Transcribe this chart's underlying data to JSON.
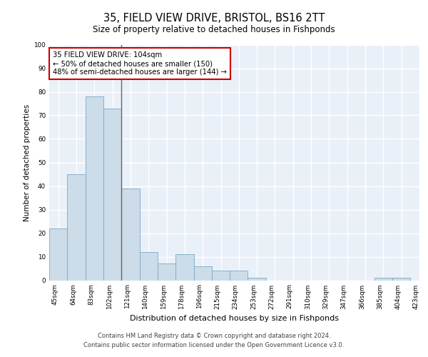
{
  "title_line1": "35, FIELD VIEW DRIVE, BRISTOL, BS16 2TT",
  "title_line2": "Size of property relative to detached houses in Fishponds",
  "xlabel": "Distribution of detached houses by size in Fishponds",
  "ylabel": "Number of detached properties",
  "bar_values": [
    22,
    45,
    78,
    73,
    39,
    12,
    7,
    11,
    6,
    4,
    4,
    1,
    0,
    0,
    0,
    0,
    0,
    0,
    1,
    1
  ],
  "bin_labels": [
    "45sqm",
    "64sqm",
    "83sqm",
    "102sqm",
    "121sqm",
    "140sqm",
    "159sqm",
    "178sqm",
    "196sqm",
    "215sqm",
    "234sqm",
    "253sqm",
    "272sqm",
    "291sqm",
    "310sqm",
    "329sqm",
    "347sqm",
    "366sqm",
    "385sqm",
    "404sqm",
    "423sqm"
  ],
  "bar_color": "#ccdce8",
  "bar_edge_color": "#7aaac8",
  "annotation_text": "35 FIELD VIEW DRIVE: 104sqm\n← 50% of detached houses are smaller (150)\n48% of semi-detached houses are larger (144) →",
  "annotation_box_color": "#ffffff",
  "annotation_box_edge_color": "#cc0000",
  "ylim": [
    0,
    100
  ],
  "bg_color": "#eaf0f8",
  "grid_color": "#ffffff",
  "footnote1": "Contains HM Land Registry data © Crown copyright and database right 2024.",
  "footnote2": "Contains public sector information licensed under the Open Government Licence v3.0."
}
